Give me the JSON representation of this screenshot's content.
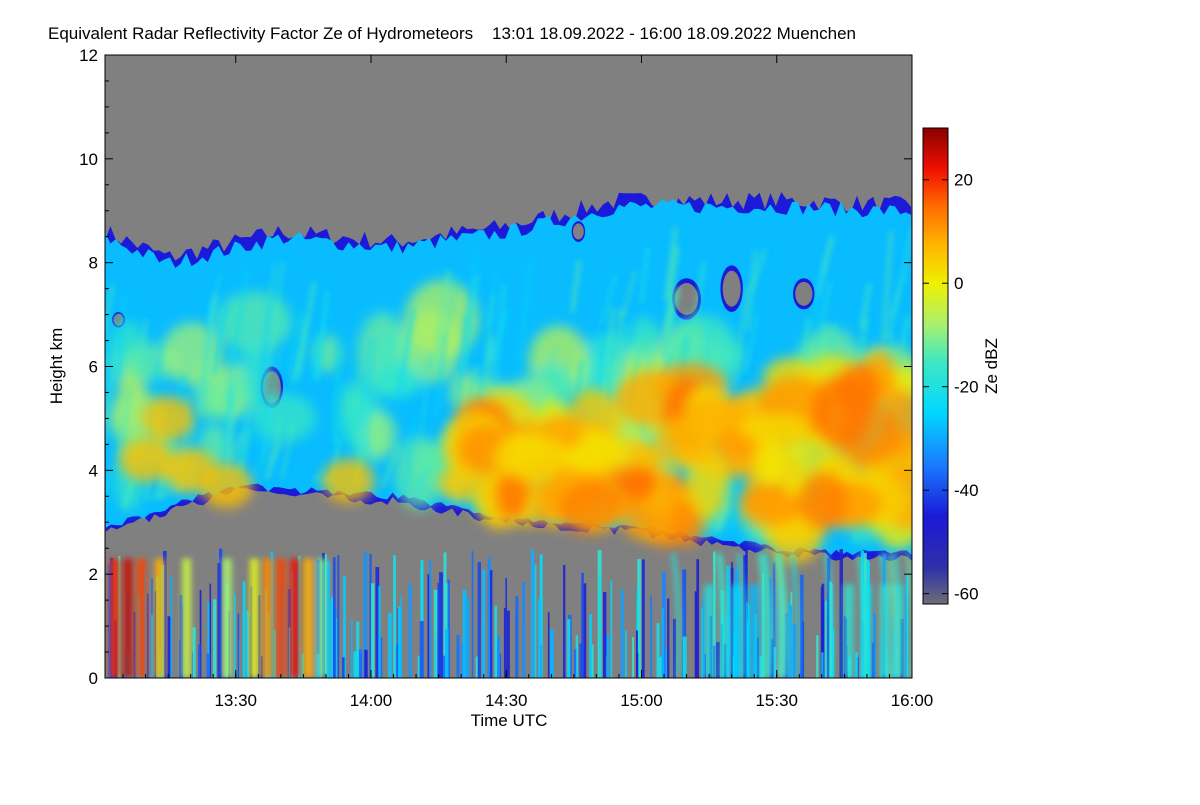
{
  "chart_data": {
    "type": "heatmap",
    "title": "Equivalent Radar Reflectivity Factor Ze of Hydrometeors    13:01 18.09.2022 - 16:00 18.09.2022 Muenchen",
    "xlabel": "Time UTC",
    "ylabel": "Height km",
    "x_range_minutes_utc": [
      781,
      960
    ],
    "xlim": [
      "13:01",
      "16:00"
    ],
    "ylim": [
      0,
      12
    ],
    "x_ticks": [
      {
        "label": "13:30",
        "minute": 810
      },
      {
        "label": "14:00",
        "minute": 840
      },
      {
        "label": "14:30",
        "minute": 870
      },
      {
        "label": "15:00",
        "minute": 900
      },
      {
        "label": "15:30",
        "minute": 930
      },
      {
        "label": "16:00",
        "minute": 960
      }
    ],
    "y_ticks": [
      0,
      2,
      4,
      6,
      8,
      10,
      12
    ],
    "colorbar": {
      "label": "Ze dBZ",
      "range": [
        -62,
        30
      ],
      "ticks": [
        20,
        0,
        -20,
        -40,
        -60
      ],
      "stops": [
        {
          "value": -62,
          "color": "#6e6e78"
        },
        {
          "value": -55,
          "color": "#3030a8"
        },
        {
          "value": -45,
          "color": "#1a1ad8"
        },
        {
          "value": -35,
          "color": "#1a7cff"
        },
        {
          "value": -25,
          "color": "#00d8ff"
        },
        {
          "value": -15,
          "color": "#40e8c0"
        },
        {
          "value": -8,
          "color": "#a8f070"
        },
        {
          "value": 0,
          "color": "#f0f000"
        },
        {
          "value": 8,
          "color": "#ffb000"
        },
        {
          "value": 15,
          "color": "#ff6a00"
        },
        {
          "value": 22,
          "color": "#f01000"
        },
        {
          "value": 30,
          "color": "#8a0000"
        }
      ]
    },
    "no_data_color": "#808080",
    "layers": [
      {
        "name": "upper cloud",
        "top_km": [
          8.6,
          8.1,
          8.6,
          8.4,
          8.7,
          9.2,
          9.2,
          9.1
        ],
        "top_minute": [
          781,
          795,
          820,
          845,
          870,
          895,
          930,
          960
        ],
        "base_km": [
          2.8,
          3.6,
          3.4,
          3.0,
          2.8,
          2.4,
          2.3,
          2.3
        ],
        "base_minute": [
          781,
          810,
          845,
          870,
          900,
          930,
          945,
          960
        ]
      },
      {
        "name": "high reflectivity core",
        "value_range_dbz": [
          0,
          15
        ],
        "time_start": "14:20",
        "time_end": "16:00",
        "height_km": [
          2.8,
          5.8
        ]
      },
      {
        "name": "precipitation below cloud",
        "time_start": "13:01",
        "time_end": "16:00",
        "height_km": [
          0,
          2.5
        ],
        "peak_value_dbz": 25
      }
    ]
  }
}
